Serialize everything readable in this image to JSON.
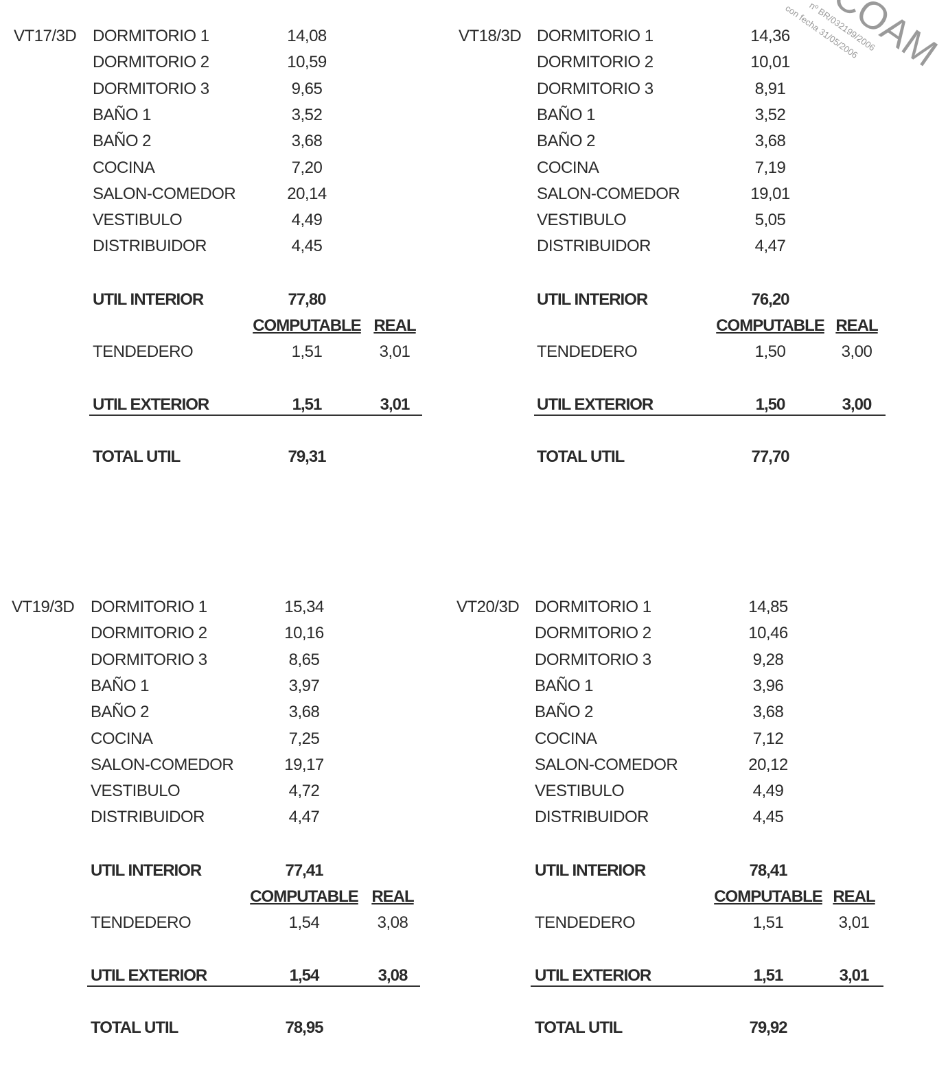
{
  "stamp": {
    "org": "COAM",
    "number": "nº BR/032199/2006",
    "date": "con fecha 31/05/2006"
  },
  "units": [
    {
      "code": "VT17/3D",
      "rooms": [
        [
          "DORMITORIO 1",
          "14,08"
        ],
        [
          "DORMITORIO 2",
          "10,59"
        ],
        [
          "DORMITORIO 3",
          "9,65"
        ],
        [
          "BAÑO 1",
          "3,52"
        ],
        [
          "BAÑO 2",
          "3,68"
        ],
        [
          "COCINA",
          "7,20"
        ],
        [
          "SALON-COMEDOR",
          "20,14"
        ],
        [
          "VESTIBULO",
          "4,49"
        ],
        [
          "DISTRIBUIDOR",
          "4,45"
        ]
      ],
      "interior": [
        "UTIL INTERIOR",
        "77,80"
      ],
      "headers": [
        "COMPUTABLE",
        "REAL"
      ],
      "tendedero": [
        "TENDEDERO",
        "1,51",
        "3,01"
      ],
      "exterior": [
        "UTIL EXTERIOR",
        "1,51",
        "3,01"
      ],
      "total": [
        "TOTAL UTIL",
        "79,31"
      ]
    },
    {
      "code": "VT18/3D",
      "rooms": [
        [
          "DORMITORIO 1",
          "14,36"
        ],
        [
          "DORMITORIO 2",
          "10,01"
        ],
        [
          "DORMITORIO 3",
          "8,91"
        ],
        [
          "BAÑO 1",
          "3,52"
        ],
        [
          "BAÑO 2",
          "3,68"
        ],
        [
          "COCINA",
          "7,19"
        ],
        [
          "SALON-COMEDOR",
          "19,01"
        ],
        [
          "VESTIBULO",
          "5,05"
        ],
        [
          "DISTRIBUIDOR",
          "4,47"
        ]
      ],
      "interior": [
        "UTIL INTERIOR",
        "76,20"
      ],
      "headers": [
        "COMPUTABLE",
        "REAL"
      ],
      "tendedero": [
        "TENDEDERO",
        "1,50",
        "3,00"
      ],
      "exterior": [
        "UTIL EXTERIOR",
        "1,50",
        "3,00"
      ],
      "total": [
        "TOTAL UTIL",
        "77,70"
      ]
    },
    {
      "code": "VT19/3D",
      "rooms": [
        [
          "DORMITORIO 1",
          "15,34"
        ],
        [
          "DORMITORIO 2",
          "10,16"
        ],
        [
          "DORMITORIO 3",
          "8,65"
        ],
        [
          "BAÑO 1",
          "3,97"
        ],
        [
          "BAÑO 2",
          "3,68"
        ],
        [
          "COCINA",
          "7,25"
        ],
        [
          "SALON-COMEDOR",
          "19,17"
        ],
        [
          "VESTIBULO",
          "4,72"
        ],
        [
          "DISTRIBUIDOR",
          "4,47"
        ]
      ],
      "interior": [
        "UTIL INTERIOR",
        "77,41"
      ],
      "headers": [
        "COMPUTABLE",
        "REAL"
      ],
      "tendedero": [
        "TENDEDERO",
        "1,54",
        "3,08"
      ],
      "exterior": [
        "UTIL EXTERIOR",
        "1,54",
        "3,08"
      ],
      "total": [
        "TOTAL UTIL",
        "78,95"
      ]
    },
    {
      "code": "VT20/3D",
      "rooms": [
        [
          "DORMITORIO 1",
          "14,85"
        ],
        [
          "DORMITORIO 2",
          "10,46"
        ],
        [
          "DORMITORIO 3",
          "9,28"
        ],
        [
          "BAÑO 1",
          "3,96"
        ],
        [
          "BAÑO 2",
          "3,68"
        ],
        [
          "COCINA",
          "7,12"
        ],
        [
          "SALON-COMEDOR",
          "20,12"
        ],
        [
          "VESTIBULO",
          "4,49"
        ],
        [
          "DISTRIBUIDOR",
          "4,45"
        ]
      ],
      "interior": [
        "UTIL INTERIOR",
        "78,41"
      ],
      "headers": [
        "COMPUTABLE",
        "REAL"
      ],
      "tendedero": [
        "TENDEDERO",
        "1,51",
        "3,01"
      ],
      "exterior": [
        "UTIL EXTERIOR",
        "1,51",
        "3,01"
      ],
      "total": [
        "TOTAL UTIL",
        "79,92"
      ]
    }
  ]
}
